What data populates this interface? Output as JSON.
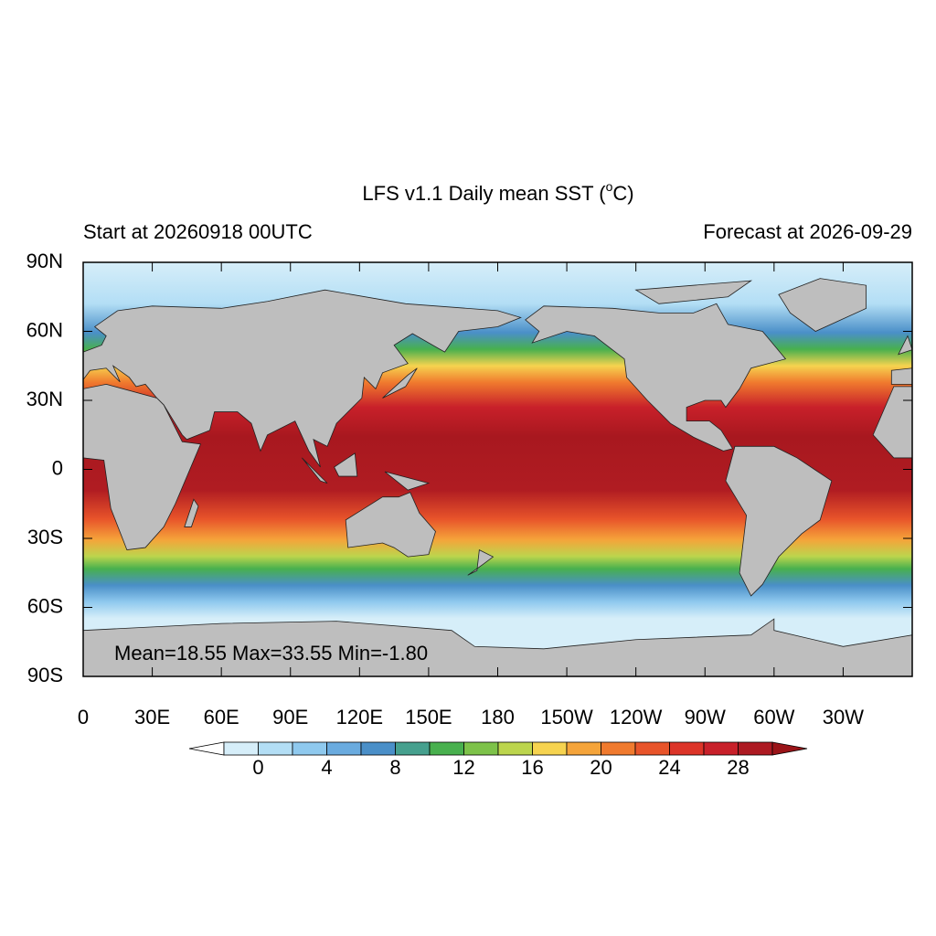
{
  "header": {
    "title": "LFS v1.1 Daily mean SST (",
    "title_sup": "o",
    "title_end": "C)",
    "left": "Start at 20260918 00UTC",
    "right": "Forecast at 2026-09-29"
  },
  "chart_data": {
    "type": "map",
    "xlim": [
      0,
      360
    ],
    "ylim": [
      -90,
      90
    ],
    "xticks": [
      0,
      {
        "value": 30,
        "label": "30E"
      },
      {
        "value": 60,
        "label": "60E"
      },
      {
        "value": 90,
        "label": "90E"
      },
      {
        "value": 120,
        "label": "120E"
      },
      {
        "value": 150,
        "label": "150E"
      },
      180,
      {
        "value": 210,
        "label": "150W"
      },
      {
        "value": 240,
        "label": "120W"
      },
      {
        "value": 270,
        "label": "90W"
      },
      {
        "value": 300,
        "label": "60W"
      },
      {
        "value": 330,
        "label": "30W"
      }
    ],
    "yticks": [
      {
        "value": 90,
        "label": "90N"
      },
      {
        "value": 60,
        "label": "60N"
      },
      {
        "value": 30,
        "label": "30N"
      },
      0,
      {
        "value": -30,
        "label": "30S"
      },
      {
        "value": -60,
        "label": "60S"
      },
      {
        "value": -90,
        "label": "90S"
      }
    ],
    "annotation": "Mean=18.55  Max=33.55  Min=-1.80",
    "colorbar": {
      "labels": [
        0,
        4,
        8,
        12,
        16,
        20,
        24,
        28
      ],
      "colors": [
        "#ffffff",
        "#d6eef9",
        "#b3def5",
        "#8fc9ee",
        "#6aabdf",
        "#4a8fc8",
        "#46a08e",
        "#48b04e",
        "#7dc249",
        "#bcd54d",
        "#f6d34f",
        "#f5a43a",
        "#f07a2e",
        "#e8542a",
        "#dc3428",
        "#c8202a",
        "#ad1a22",
        "#9a1418"
      ]
    }
  }
}
